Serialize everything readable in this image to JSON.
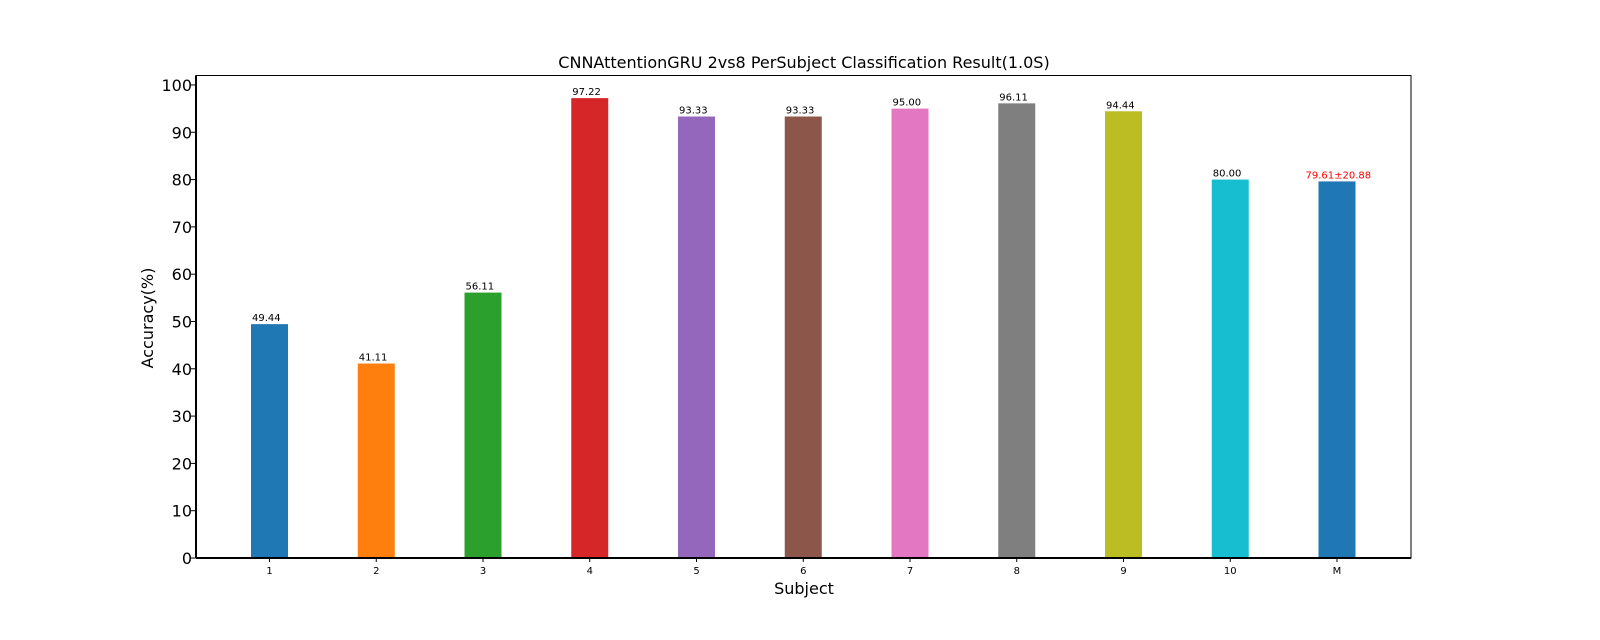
{
  "chart_data": {
    "type": "bar",
    "title": "CNNAttentionGRU 2vs8 PerSubject Classification Result(1.0S)",
    "xlabel": "Subject",
    "ylabel": "Accuracy(%)",
    "ylim": [
      0,
      102
    ],
    "yticks": [
      0,
      10,
      20,
      30,
      40,
      50,
      60,
      70,
      80,
      90,
      100
    ],
    "grid": false,
    "legend": "none",
    "categories": [
      "1",
      "2",
      "3",
      "4",
      "5",
      "6",
      "7",
      "8",
      "9",
      "10",
      "M"
    ],
    "values": [
      49.44,
      41.11,
      56.11,
      97.22,
      93.33,
      93.33,
      95.0,
      96.11,
      94.44,
      80.0,
      79.61
    ],
    "data_labels": [
      "49.44",
      "41.11",
      "56.11",
      "97.22",
      "93.33",
      "93.33",
      "95.00",
      "96.11",
      "94.44",
      "80.00",
      "79.61±20.88"
    ],
    "bar_colors": [
      "#1f77b4",
      "#ff7f0e",
      "#2ca02c",
      "#d62728",
      "#9467bd",
      "#8c564b",
      "#e377c2",
      "#7f7f7f",
      "#bcbd22",
      "#17becf",
      "#1f77b4"
    ],
    "label_colors": [
      "#000000",
      "#000000",
      "#000000",
      "#000000",
      "#000000",
      "#000000",
      "#000000",
      "#000000",
      "#000000",
      "#000000",
      "#ff0000"
    ]
  }
}
